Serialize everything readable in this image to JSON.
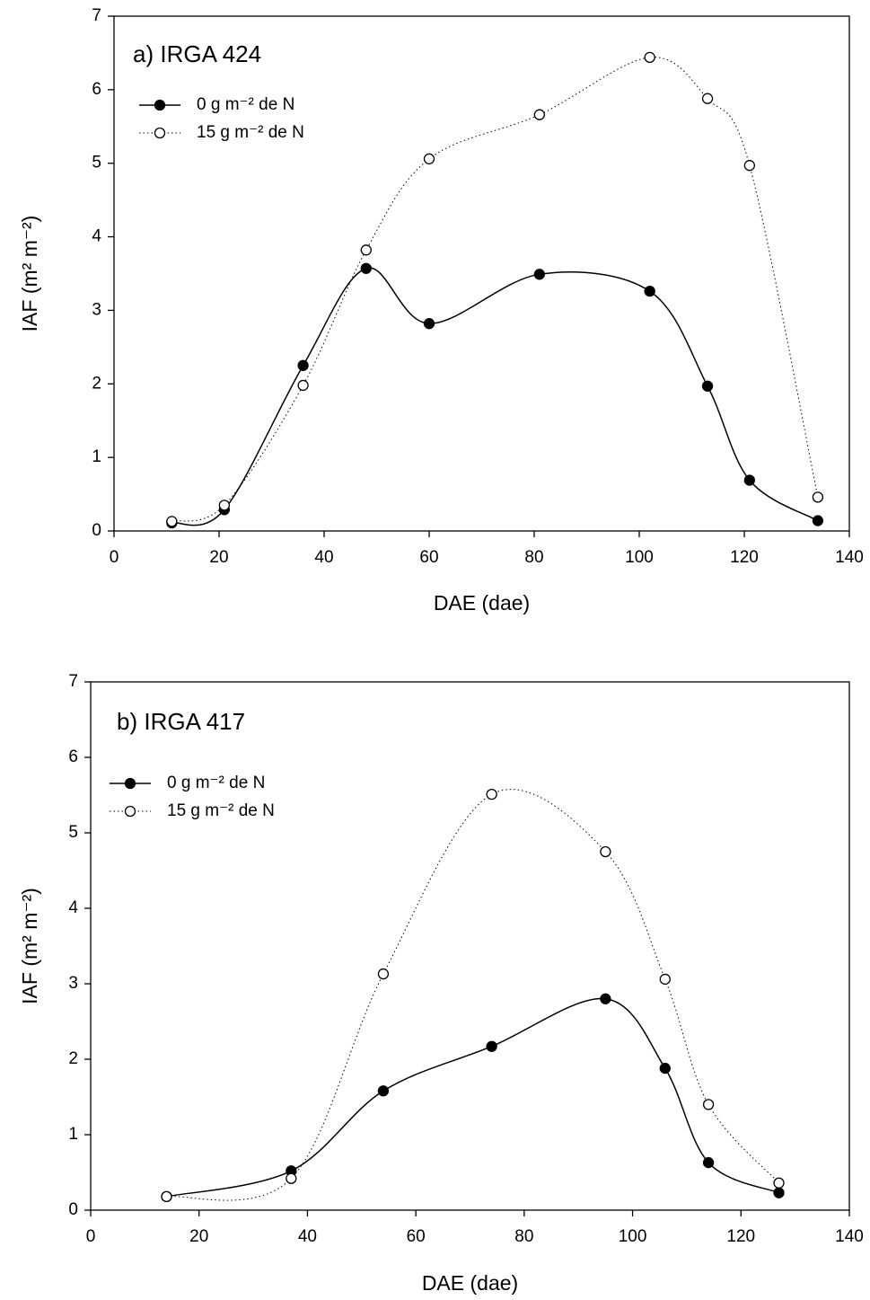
{
  "chart_data": [
    {
      "type": "line",
      "title": "a) IRGA 424",
      "xlabel": "DAE (dae)",
      "ylabel": "IAF (m² m⁻²)",
      "xlim": [
        0,
        140
      ],
      "xticks": [
        0,
        20,
        40,
        60,
        80,
        100,
        120,
        140
      ],
      "ylim": [
        0,
        7
      ],
      "yticks": [
        0,
        1,
        2,
        3,
        4,
        5,
        6,
        7
      ],
      "grid": false,
      "series": [
        {
          "name": "0 g m⁻² de N",
          "color": "#000000",
          "marker": "filled",
          "linestyle": "solid",
          "x": [
            11,
            21,
            36,
            48,
            60,
            81,
            102,
            113,
            121,
            134
          ],
          "values": [
            0.11,
            0.29,
            2.25,
            3.57,
            2.82,
            3.49,
            3.26,
            1.97,
            0.69,
            0.14
          ]
        },
        {
          "name": "15 g m⁻² de N",
          "color": "#000000",
          "marker": "open",
          "linestyle": "dotted",
          "x": [
            11,
            21,
            36,
            48,
            60,
            81,
            102,
            113,
            121,
            134
          ],
          "values": [
            0.13,
            0.35,
            1.98,
            3.82,
            5.06,
            5.66,
            6.44,
            5.88,
            4.97,
            0.46
          ]
        }
      ]
    },
    {
      "type": "line",
      "title": "b) IRGA 417",
      "xlabel": "DAE (dae)",
      "ylabel": "IAF (m² m⁻²)",
      "xlim": [
        0,
        140
      ],
      "xticks": [
        0,
        20,
        40,
        60,
        80,
        100,
        120,
        140
      ],
      "ylim": [
        0,
        7
      ],
      "yticks": [
        0,
        1,
        2,
        3,
        4,
        5,
        6,
        7
      ],
      "grid": false,
      "series": [
        {
          "name": "0 g m⁻² de N",
          "color": "#000000",
          "marker": "filled",
          "linestyle": "solid",
          "x": [
            14,
            37,
            54,
            74,
            95,
            106,
            114,
            127
          ],
          "values": [
            0.18,
            0.52,
            1.58,
            2.17,
            2.8,
            1.88,
            0.63,
            0.23
          ]
        },
        {
          "name": "15 g m⁻² de N",
          "color": "#000000",
          "marker": "open",
          "linestyle": "dotted",
          "x": [
            14,
            37,
            54,
            74,
            95,
            106,
            114,
            127
          ],
          "values": [
            0.18,
            0.42,
            3.13,
            5.51,
            4.75,
            3.06,
            1.4,
            0.36
          ]
        }
      ]
    }
  ]
}
